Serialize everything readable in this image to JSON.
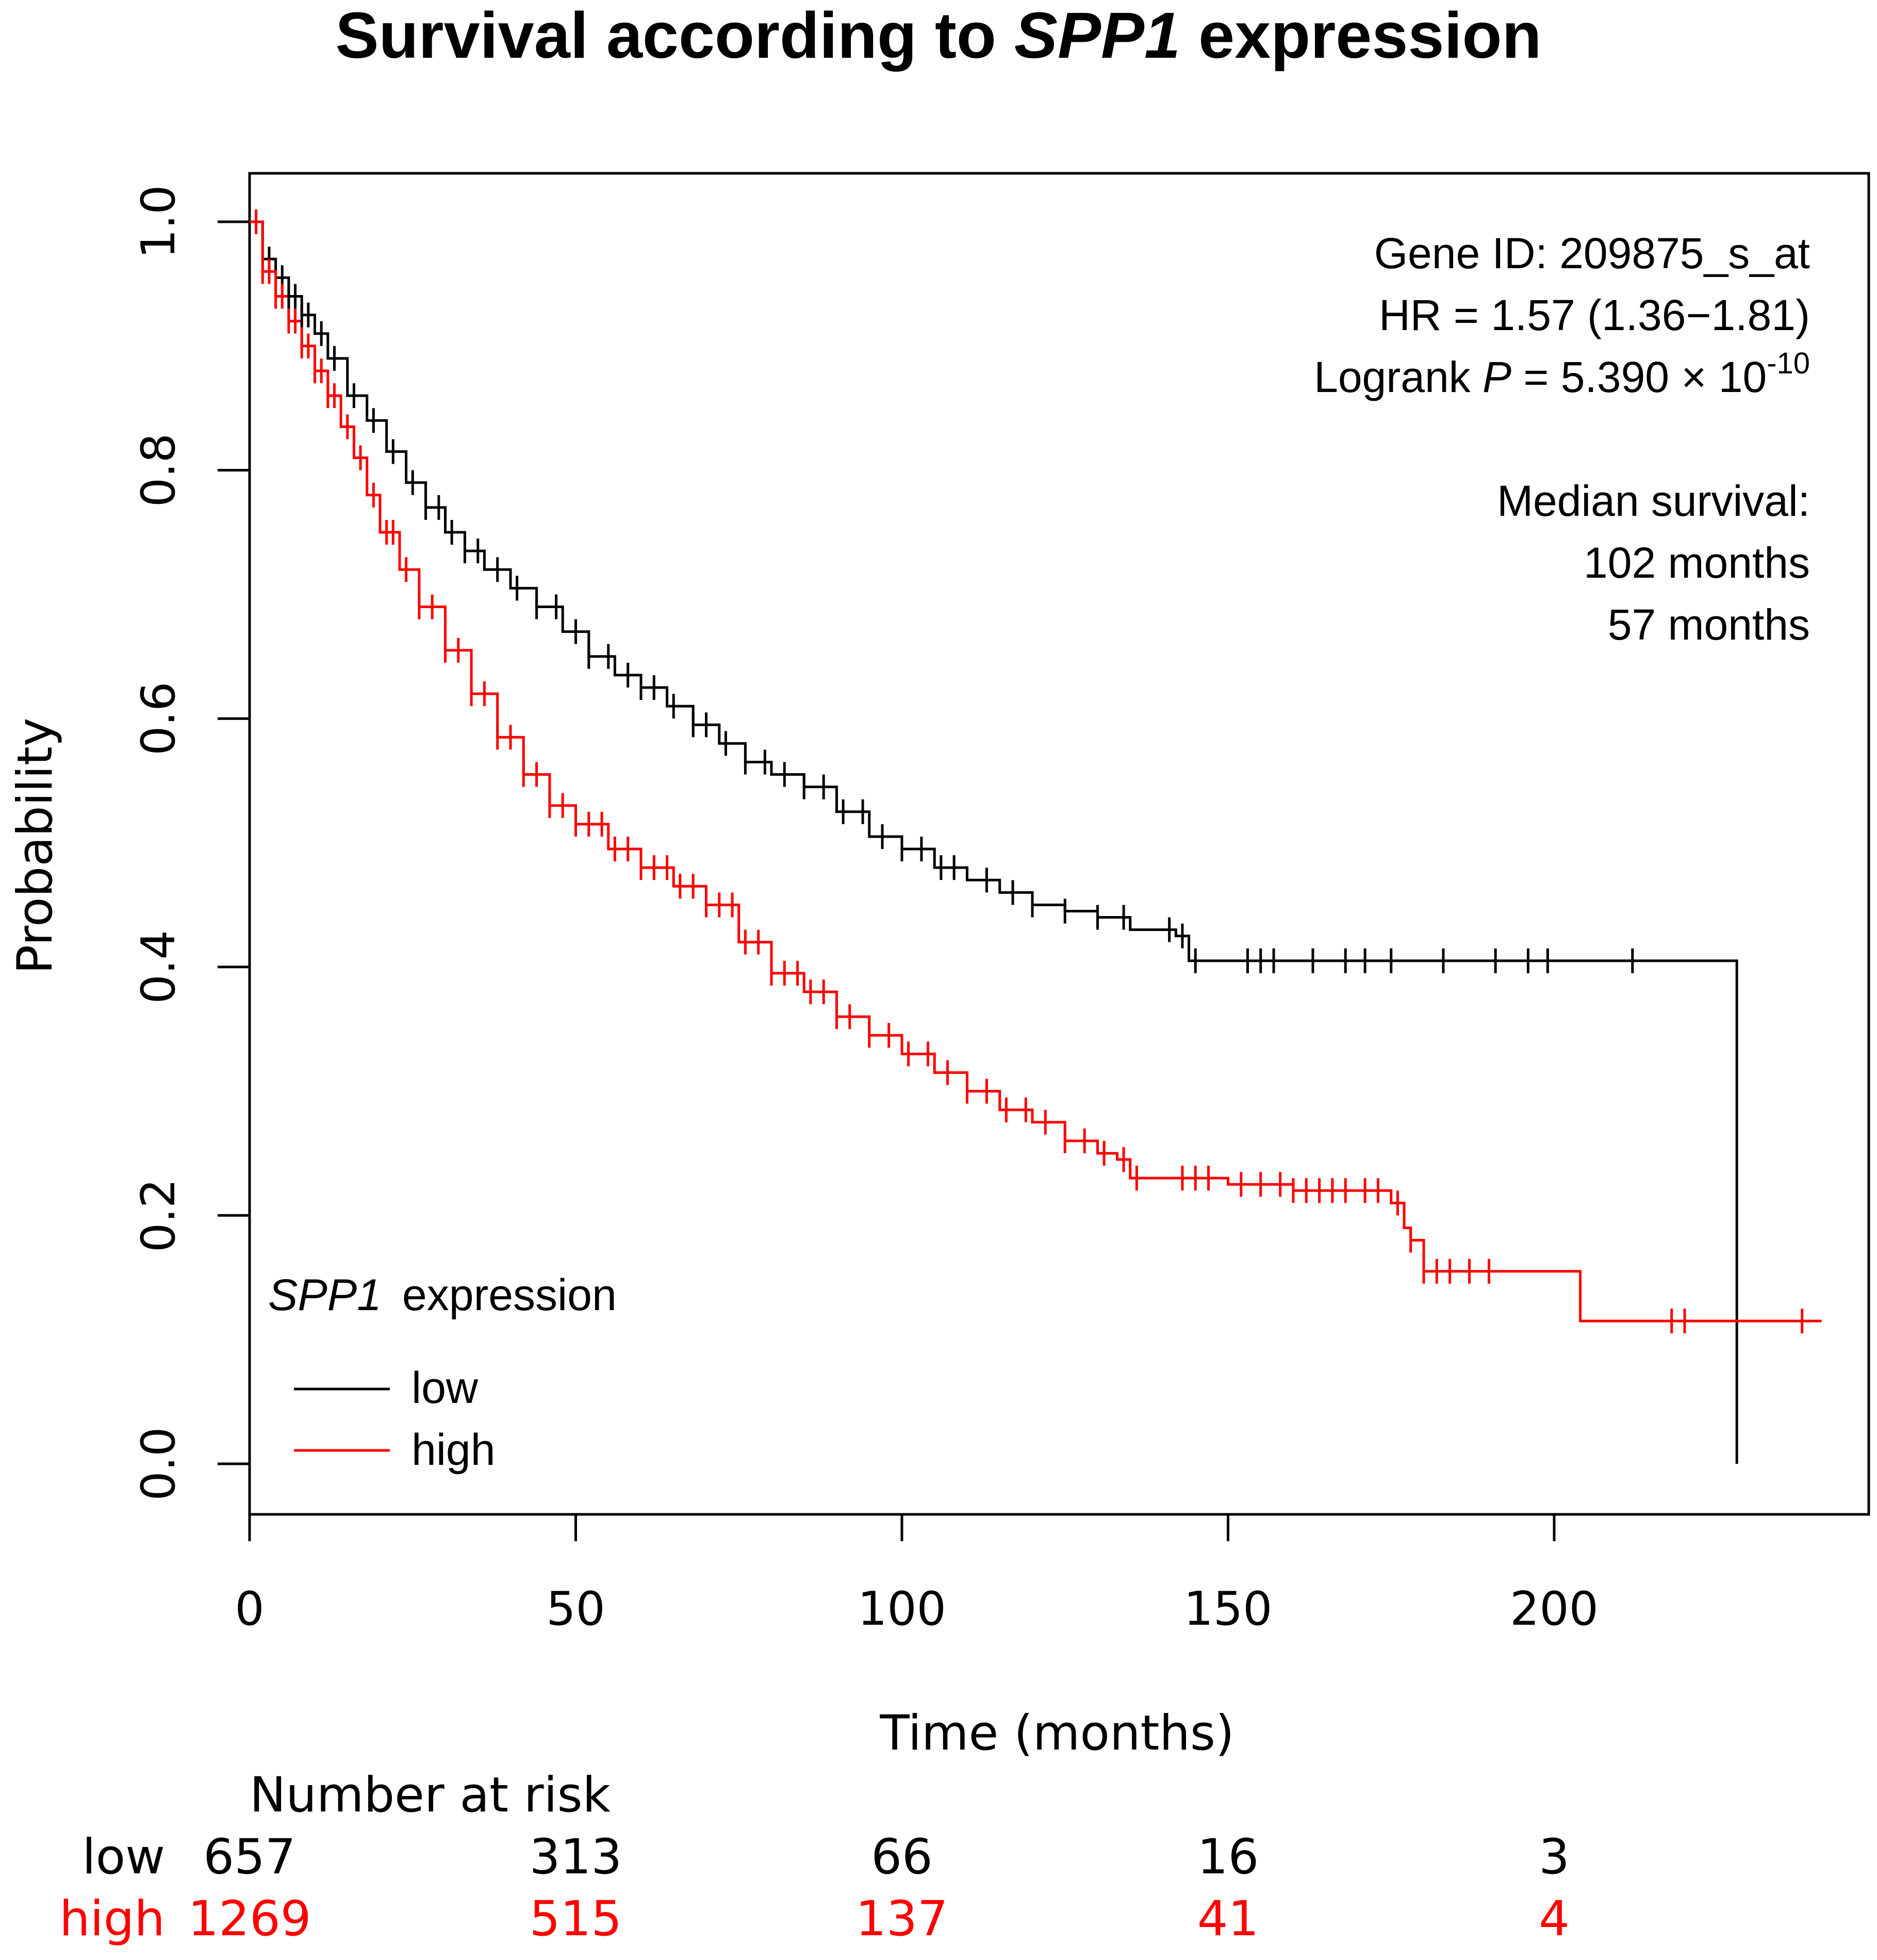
{
  "chart_data": {
    "type": "line",
    "subtype": "kaplan-meier",
    "title": {
      "prefix": "Survival according to ",
      "gene": "SPP1",
      "suffix": " expression"
    },
    "xlabel": "Time (months)",
    "ylabel": "Probability",
    "xlim": [
      0,
      240
    ],
    "ylim": [
      0,
      1
    ],
    "xticks": [
      0,
      50,
      100,
      150,
      200
    ],
    "xtick_labels": [
      "0",
      "50",
      "100",
      "150",
      "200"
    ],
    "yticks": [
      0,
      0.2,
      0.4,
      0.6,
      0.8,
      1.0
    ],
    "ytick_labels": [
      "0.0",
      "0.2",
      "0.4",
      "0.6",
      "0.8",
      "1.0"
    ],
    "stats": {
      "gene_id": "Gene ID: 209875_s_at",
      "hr": "HR = 1.57 (1.36−1.81)",
      "logrank_prefix": "Logrank ",
      "logrank_p": "P",
      "logrank_value": " = 5.390 × 10",
      "logrank_exp": "-10",
      "median_label": "Median survival:",
      "median_low": "102 months",
      "median_high": "57 months"
    },
    "legend": {
      "title_gene": "SPP1",
      "title_rest": "expression",
      "position": "bottom-left"
    },
    "series": [
      {
        "name": "low",
        "color": "#000000",
        "x": [
          0,
          2,
          4,
          6,
          8,
          10,
          12,
          15,
          18,
          21,
          24,
          27,
          30,
          33,
          36,
          40,
          44,
          48,
          52,
          56,
          60,
          64,
          68,
          72,
          76,
          80,
          85,
          90,
          95,
          100,
          105,
          110,
          115,
          120,
          125,
          130,
          135,
          140,
          142,
          144,
          228
        ],
        "y": [
          1.0,
          0.97,
          0.955,
          0.94,
          0.925,
          0.91,
          0.89,
          0.86,
          0.84,
          0.815,
          0.79,
          0.77,
          0.75,
          0.735,
          0.72,
          0.705,
          0.69,
          0.67,
          0.65,
          0.635,
          0.625,
          0.61,
          0.595,
          0.58,
          0.565,
          0.555,
          0.545,
          0.525,
          0.505,
          0.495,
          0.48,
          0.47,
          0.46,
          0.45,
          0.445,
          0.44,
          0.43,
          0.43,
          0.425,
          0.405,
          0.405
        ],
        "drop_at_end_to": 0,
        "censor_x": [
          3,
          5,
          6,
          7,
          8,
          9,
          11,
          13,
          16,
          19,
          22,
          25,
          27,
          29,
          31,
          33,
          35,
          38,
          41,
          44,
          47,
          50,
          52,
          55,
          58,
          60,
          62,
          65,
          68,
          70,
          73,
          76,
          79,
          82,
          85,
          88,
          91,
          94,
          97,
          100,
          103,
          106,
          108,
          113,
          117,
          120,
          125,
          130,
          134,
          141,
          143,
          145,
          153,
          155,
          157,
          163,
          168,
          171,
          175,
          183,
          191,
          196,
          199,
          212
        ]
      },
      {
        "name": "high",
        "color": "#ff0000",
        "x": [
          0,
          2,
          4,
          6,
          8,
          10,
          12,
          14,
          16,
          18,
          20,
          23,
          26,
          30,
          34,
          38,
          42,
          46,
          50,
          55,
          60,
          65,
          70,
          75,
          80,
          85,
          90,
          95,
          100,
          105,
          110,
          115,
          120,
          125,
          130,
          133,
          135,
          140,
          150,
          160,
          170,
          175,
          177,
          178,
          180,
          190,
          200,
          204,
          210,
          241
        ],
        "y": [
          1.0,
          0.96,
          0.94,
          0.92,
          0.9,
          0.88,
          0.86,
          0.835,
          0.81,
          0.78,
          0.75,
          0.72,
          0.69,
          0.655,
          0.62,
          0.585,
          0.555,
          0.53,
          0.515,
          0.495,
          0.48,
          0.465,
          0.45,
          0.42,
          0.395,
          0.38,
          0.36,
          0.345,
          0.33,
          0.315,
          0.3,
          0.285,
          0.275,
          0.26,
          0.25,
          0.245,
          0.23,
          0.23,
          0.225,
          0.22,
          0.22,
          0.21,
          0.19,
          0.18,
          0.155,
          0.155,
          0.155,
          0.115,
          0.115,
          0.115
        ],
        "censor_x": [
          1,
          2,
          3,
          4,
          5,
          6,
          7,
          8,
          9,
          10,
          11,
          12,
          13,
          15,
          17,
          19,
          21,
          22,
          24,
          26,
          28,
          30,
          32,
          34,
          36,
          38,
          40,
          42,
          44,
          46,
          48,
          50,
          52,
          54,
          56,
          58,
          60,
          62,
          64,
          66,
          68,
          70,
          72,
          74,
          76,
          78,
          80,
          82,
          84,
          86,
          88,
          90,
          92,
          95,
          98,
          101,
          104,
          107,
          110,
          113,
          116,
          119,
          122,
          125,
          128,
          131,
          134,
          136,
          143,
          145,
          147,
          152,
          155,
          158,
          160,
          162,
          164,
          166,
          168,
          171,
          173,
          176,
          178,
          180,
          182,
          184,
          187,
          190,
          218,
          220,
          238
        ]
      }
    ],
    "risk_table": {
      "title": "Number at risk",
      "rows": [
        {
          "label": "low",
          "color": "#000000",
          "values": [
            "657",
            "313",
            "66",
            "16",
            "3"
          ]
        },
        {
          "label": "high",
          "color": "#ff0000",
          "values": [
            "1269",
            "515",
            "137",
            "41",
            "4"
          ]
        }
      ]
    }
  }
}
